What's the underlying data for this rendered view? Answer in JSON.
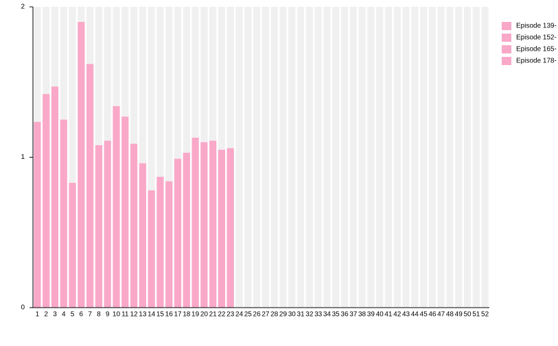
{
  "chart_data": {
    "type": "bar",
    "categories": [
      "1",
      "2",
      "3",
      "4",
      "5",
      "6",
      "7",
      "8",
      "9",
      "10",
      "11",
      "12",
      "13",
      "14",
      "15",
      "16",
      "17",
      "18",
      "19",
      "20",
      "21",
      "22",
      "23",
      "24",
      "25",
      "26",
      "27",
      "28",
      "29",
      "30",
      "31",
      "32",
      "33",
      "34",
      "35",
      "36",
      "37",
      "38",
      "39",
      "40",
      "41",
      "42",
      "43",
      "44",
      "45",
      "46",
      "47",
      "48",
      "49",
      "50",
      "51",
      "52"
    ],
    "values": [
      1.235,
      1.42,
      1.47,
      1.25,
      0.83,
      1.9,
      1.62,
      1.08,
      1.11,
      1.34,
      1.27,
      1.09,
      0.96,
      0.78,
      0.87,
      0.84,
      0.99,
      1.03,
      1.13,
      1.1,
      1.11,
      1.05,
      1.06,
      null,
      null,
      null,
      null,
      null,
      null,
      null,
      null,
      null,
      null,
      null,
      null,
      null,
      null,
      null,
      null,
      null,
      null,
      null,
      null,
      null,
      null,
      null,
      null,
      null,
      null,
      null,
      null,
      null
    ],
    "color": "#f9a8c8",
    "legend": [
      {
        "name": "Episode 139-",
        "color": "#f9a8c8"
      },
      {
        "name": "Episode 152-",
        "color": "#f9a8c8"
      },
      {
        "name": "Episode 165-",
        "color": "#f9a8c8"
      },
      {
        "name": "Episode 178-",
        "color": "#f9a8c8"
      }
    ],
    "ylim": [
      0,
      2
    ],
    "yticks": [
      0,
      1,
      2
    ]
  }
}
